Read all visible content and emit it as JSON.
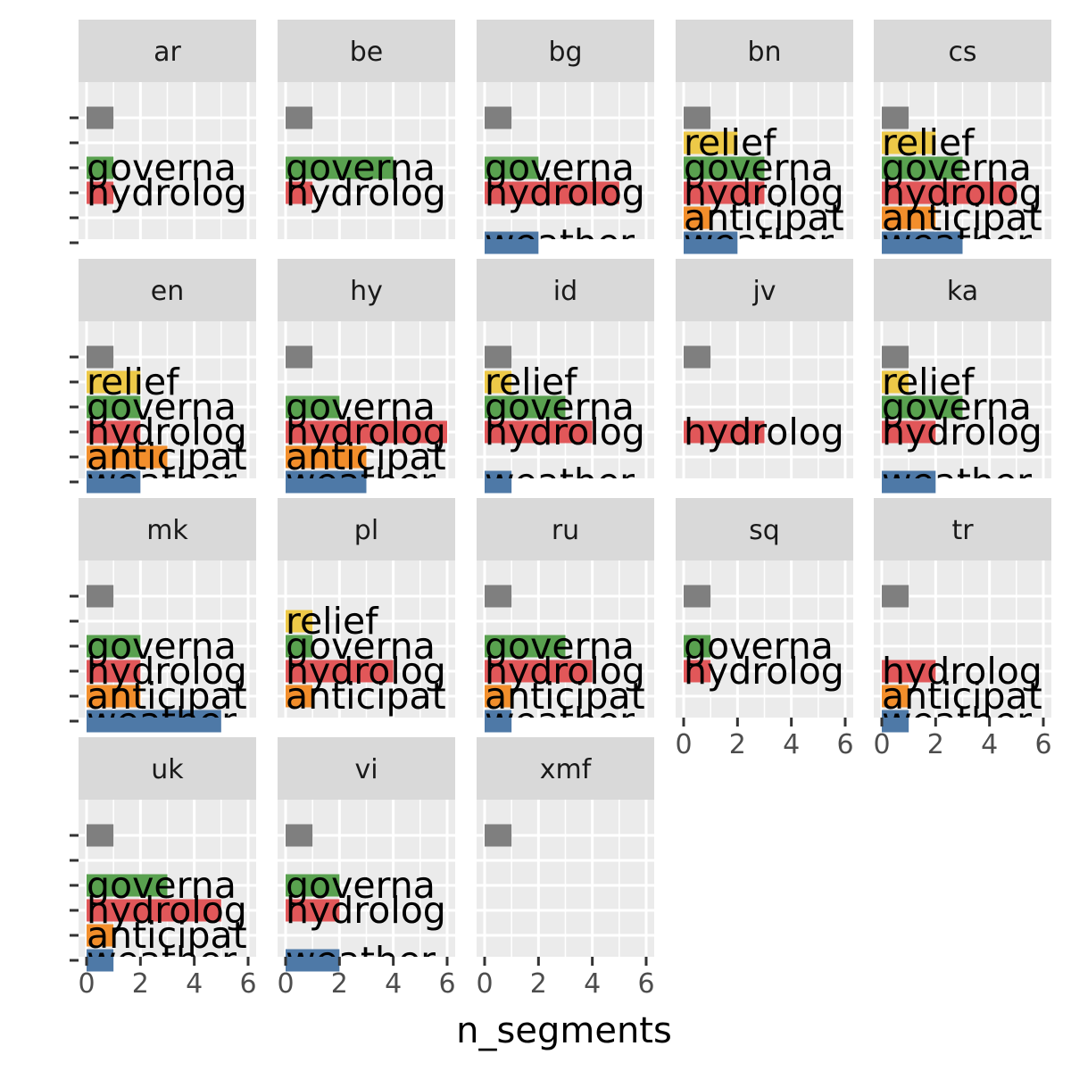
{
  "chart_data": {
    "type": "bar",
    "orientation": "horizontal",
    "facet_by": "language",
    "xlabel": "n_segments",
    "ylabel": "",
    "xlim": [
      0,
      6
    ],
    "x_ticks": [
      0,
      2,
      4,
      6
    ],
    "grid": true,
    "y_categories": [
      "",
      "relief",
      "governa",
      "hydrolog",
      "anticipat",
      "weather"
    ],
    "category_colors": {
      "": "#7f7f7f",
      "relief": "#edc948",
      "governa": "#59a14f",
      "hydrolog": "#e15759",
      "anticipat": "#f28e2b",
      "weather": "#4e79a7"
    },
    "facets": [
      {
        "label": "ar",
        "bars": [
          {
            "category": "",
            "value": 1
          },
          {
            "category": "governa",
            "value": 1
          },
          {
            "category": "hydrolog",
            "value": 1
          }
        ]
      },
      {
        "label": "be",
        "bars": [
          {
            "category": "",
            "value": 1
          },
          {
            "category": "governa",
            "value": 4
          },
          {
            "category": "hydrolog",
            "value": 1
          }
        ]
      },
      {
        "label": "bg",
        "bars": [
          {
            "category": "",
            "value": 1
          },
          {
            "category": "governa",
            "value": 2
          },
          {
            "category": "hydrolog",
            "value": 5
          },
          {
            "category": "weather",
            "value": 2
          }
        ]
      },
      {
        "label": "bn",
        "bars": [
          {
            "category": "",
            "value": 1
          },
          {
            "category": "relief",
            "value": 2
          },
          {
            "category": "governa",
            "value": 3
          },
          {
            "category": "hydrolog",
            "value": 3
          },
          {
            "category": "anticipat",
            "value": 1
          },
          {
            "category": "weather",
            "value": 2
          }
        ]
      },
      {
        "label": "cs",
        "bars": [
          {
            "category": "",
            "value": 1
          },
          {
            "category": "relief",
            "value": 2
          },
          {
            "category": "governa",
            "value": 3
          },
          {
            "category": "hydrolog",
            "value": 5
          },
          {
            "category": "anticipat",
            "value": 2
          },
          {
            "category": "weather",
            "value": 3
          }
        ]
      },
      {
        "label": "en",
        "bars": [
          {
            "category": "",
            "value": 1
          },
          {
            "category": "relief",
            "value": 2
          },
          {
            "category": "governa",
            "value": 2
          },
          {
            "category": "hydrolog",
            "value": 2
          },
          {
            "category": "anticipat",
            "value": 3
          },
          {
            "category": "weather",
            "value": 2
          }
        ]
      },
      {
        "label": "hy",
        "bars": [
          {
            "category": "",
            "value": 1
          },
          {
            "category": "governa",
            "value": 2
          },
          {
            "category": "hydrolog",
            "value": 6
          },
          {
            "category": "anticipat",
            "value": 3
          },
          {
            "category": "weather",
            "value": 3
          }
        ]
      },
      {
        "label": "id",
        "bars": [
          {
            "category": "",
            "value": 1
          },
          {
            "category": "relief",
            "value": 1
          },
          {
            "category": "governa",
            "value": 3
          },
          {
            "category": "hydrolog",
            "value": 4
          },
          {
            "category": "weather",
            "value": 1
          }
        ]
      },
      {
        "label": "jv",
        "bars": [
          {
            "category": "",
            "value": 1
          },
          {
            "category": "hydrolog",
            "value": 3
          }
        ]
      },
      {
        "label": "ka",
        "bars": [
          {
            "category": "",
            "value": 1
          },
          {
            "category": "relief",
            "value": 1
          },
          {
            "category": "governa",
            "value": 3
          },
          {
            "category": "hydrolog",
            "value": 2
          },
          {
            "category": "weather",
            "value": 2
          }
        ]
      },
      {
        "label": "mk",
        "bars": [
          {
            "category": "",
            "value": 1
          },
          {
            "category": "governa",
            "value": 2
          },
          {
            "category": "hydrolog",
            "value": 2
          },
          {
            "category": "anticipat",
            "value": 2
          },
          {
            "category": "weather",
            "value": 5
          }
        ]
      },
      {
        "label": "pl",
        "bars": [
          {
            "category": "relief",
            "value": 1
          },
          {
            "category": "governa",
            "value": 1
          },
          {
            "category": "hydrolog",
            "value": 4
          },
          {
            "category": "anticipat",
            "value": 1
          }
        ]
      },
      {
        "label": "ru",
        "bars": [
          {
            "category": "",
            "value": 1
          },
          {
            "category": "governa",
            "value": 3
          },
          {
            "category": "hydrolog",
            "value": 4
          },
          {
            "category": "anticipat",
            "value": 1
          },
          {
            "category": "weather",
            "value": 1
          }
        ]
      },
      {
        "label": "sq",
        "bars": [
          {
            "category": "",
            "value": 1
          },
          {
            "category": "governa",
            "value": 1
          },
          {
            "category": "hydrolog",
            "value": 1
          }
        ]
      },
      {
        "label": "tr",
        "bars": [
          {
            "category": "",
            "value": 1
          },
          {
            "category": "hydrolog",
            "value": 2
          },
          {
            "category": "anticipat",
            "value": 1
          },
          {
            "category": "weather",
            "value": 1
          }
        ]
      },
      {
        "label": "uk",
        "bars": [
          {
            "category": "",
            "value": 1
          },
          {
            "category": "governa",
            "value": 3
          },
          {
            "category": "hydrolog",
            "value": 5
          },
          {
            "category": "anticipat",
            "value": 1
          },
          {
            "category": "weather",
            "value": 1
          }
        ]
      },
      {
        "label": "vi",
        "bars": [
          {
            "category": "",
            "value": 1
          },
          {
            "category": "governa",
            "value": 2
          },
          {
            "category": "hydrolog",
            "value": 2
          },
          {
            "category": "weather",
            "value": 2
          }
        ]
      },
      {
        "label": "xmf",
        "bars": [
          {
            "category": "",
            "value": 1
          }
        ]
      }
    ]
  }
}
